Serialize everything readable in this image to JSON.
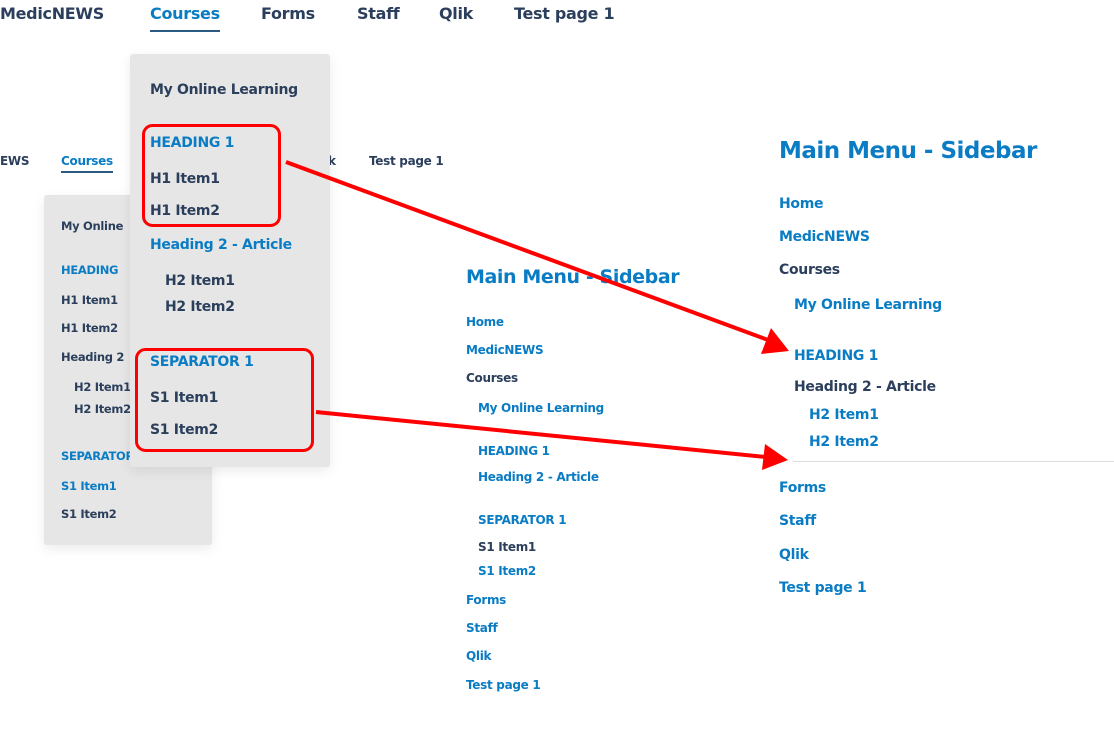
{
  "top_nav": {
    "medicnews": "MedicNEWS",
    "courses": "Courses",
    "forms": "Forms",
    "staff": "Staff",
    "qlik": "Qlik",
    "test": "Test page 1"
  },
  "small_nav": {
    "medicnews_partial": "EWS",
    "courses": "Courses",
    "qlik_partial": "k",
    "test": "Test page 1"
  },
  "small_dropdown": {
    "my_online": "My Online",
    "heading1": "HEADING",
    "h1_item1": "H1 Item1",
    "h1_item2": "H1 Item2",
    "heading2": "Heading 2",
    "h2_item1": "H2 Item1",
    "h2_item2": "H2 Item2",
    "separator": "SEPARATOR",
    "s1_item1": "S1 Item1",
    "s1_item2": "S1 Item2"
  },
  "big_dropdown": {
    "my_online": "My Online Learning",
    "heading1": "HEADING 1",
    "h1_item1": "H1 Item1",
    "h1_item2": "H1 Item2",
    "heading2": "Heading 2 - Article",
    "h2_item1": "H2 Item1",
    "h2_item2": "H2 Item2",
    "separator": "SEPARATOR 1",
    "s1_item1": "S1 Item1",
    "s1_item2": "S1 Item2"
  },
  "sidebar_middle": {
    "title": "Main Menu - Sidebar",
    "home": "Home",
    "medicnews": "MedicNEWS",
    "courses": "Courses",
    "my_online": "My Online Learning",
    "heading1": "HEADING 1",
    "heading2": "Heading 2 - Article",
    "separator": "SEPARATOR 1",
    "s1_item1": "S1 Item1",
    "s1_item2": "S1 Item2",
    "forms": "Forms",
    "staff": "Staff",
    "qlik": "Qlik",
    "test": "Test page 1"
  },
  "sidebar_right": {
    "title": "Main Menu - Sidebar",
    "home": "Home",
    "medicnews": "MedicNEWS",
    "courses": "Courses",
    "my_online": "My Online Learning",
    "heading1": "HEADING 1",
    "heading2": "Heading 2 - Article",
    "h2_item1": "H2 Item1",
    "h2_item2": "H2 Item2",
    "forms": "Forms",
    "staff": "Staff",
    "qlik": "Qlik",
    "test": "Test page 1"
  },
  "colors": {
    "link_blue": "#0a7cc4",
    "text_dark": "#2b3f5c",
    "dropdown_bg": "#e6e6e6",
    "annotation_red": "#ff0000"
  }
}
